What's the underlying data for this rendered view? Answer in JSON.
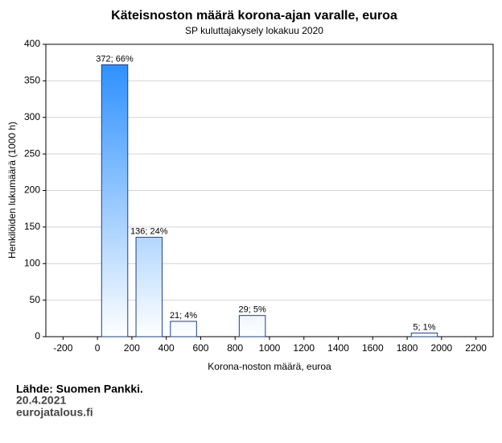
{
  "chart_data": {
    "type": "histogram",
    "title": "Käteisnoston määrä korona-ajan varalle, euroa",
    "subtitle": "SP kuluttajakysely lokakuu 2020",
    "x_label": "Korona-noston määrä, euroa",
    "y_label": "Henkilöiden lukumäärä (1000 h)",
    "bins": [
      0,
      200,
      400,
      600,
      800,
      1000,
      1200,
      1400,
      1600,
      1800,
      2000
    ],
    "values": [
      372,
      136,
      21,
      0,
      29,
      0,
      0,
      0,
      0,
      5
    ],
    "value_labels": [
      "372; 66%",
      "136; 24%",
      "21; 4%",
      null,
      "29; 5%",
      null,
      null,
      null,
      null,
      "5; 1%"
    ],
    "color": "#1e88ff",
    "xlim": [
      -300,
      2300
    ],
    "xticks": [
      -200,
      0,
      200,
      400,
      600,
      800,
      1000,
      1200,
      1400,
      1600,
      1800,
      2000,
      2200
    ],
    "ylim": [
      0,
      400
    ],
    "yticks": [
      0,
      50,
      100,
      150,
      200,
      250,
      300,
      350,
      400
    ],
    "grid": true
  },
  "footer": [
    "Lähde: Suomen Pankki.",
    "20.4.2021",
    "eurojatalous.fi"
  ]
}
